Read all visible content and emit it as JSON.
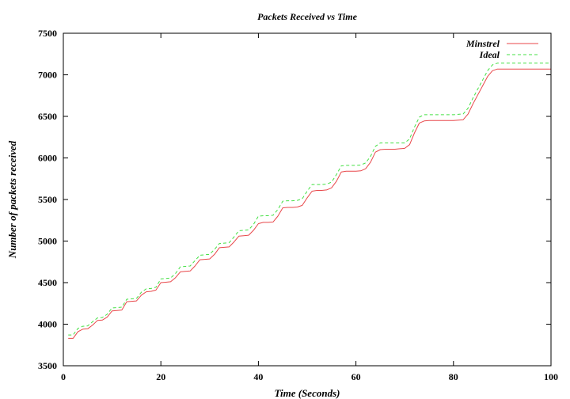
{
  "chart_data": {
    "type": "line",
    "title": "Packets Received vs Time",
    "xlabel": "Time (Seconds)",
    "ylabel": "Number of packets received",
    "xlim": [
      0,
      100
    ],
    "ylim": [
      3500,
      7500
    ],
    "xticks": [
      0,
      20,
      40,
      60,
      80,
      100
    ],
    "yticks": [
      3500,
      4000,
      4500,
      5000,
      5500,
      6000,
      6500,
      7000,
      7500
    ],
    "grid": false,
    "legend_position": "top-right",
    "series": [
      {
        "name": "Minstrel",
        "color": "#e8474a",
        "style": "solid",
        "points": [
          [
            1,
            3830
          ],
          [
            2,
            3830
          ],
          [
            3,
            3910
          ],
          [
            4,
            3940
          ],
          [
            5,
            3945
          ],
          [
            6,
            3990
          ],
          [
            7,
            4045
          ],
          [
            8,
            4050
          ],
          [
            9,
            4085
          ],
          [
            10,
            4160
          ],
          [
            11,
            4165
          ],
          [
            12,
            4170
          ],
          [
            13,
            4270
          ],
          [
            14,
            4275
          ],
          [
            15,
            4280
          ],
          [
            16,
            4350
          ],
          [
            17,
            4390
          ],
          [
            18,
            4395
          ],
          [
            19,
            4410
          ],
          [
            20,
            4500
          ],
          [
            21,
            4505
          ],
          [
            22,
            4510
          ],
          [
            23,
            4560
          ],
          [
            24,
            4630
          ],
          [
            25,
            4635
          ],
          [
            26,
            4640
          ],
          [
            27,
            4700
          ],
          [
            28,
            4775
          ],
          [
            29,
            4780
          ],
          [
            30,
            4785
          ],
          [
            31,
            4840
          ],
          [
            32,
            4920
          ],
          [
            33,
            4925
          ],
          [
            34,
            4930
          ],
          [
            35,
            4990
          ],
          [
            36,
            5060
          ],
          [
            37,
            5065
          ],
          [
            38,
            5070
          ],
          [
            39,
            5130
          ],
          [
            40,
            5210
          ],
          [
            41,
            5225
          ],
          [
            42,
            5225
          ],
          [
            43,
            5230
          ],
          [
            44,
            5300
          ],
          [
            45,
            5400
          ],
          [
            46,
            5405
          ],
          [
            47,
            5405
          ],
          [
            48,
            5410
          ],
          [
            49,
            5430
          ],
          [
            50,
            5520
          ],
          [
            51,
            5600
          ],
          [
            52,
            5610
          ],
          [
            53,
            5610
          ],
          [
            54,
            5615
          ],
          [
            55,
            5640
          ],
          [
            56,
            5720
          ],
          [
            57,
            5830
          ],
          [
            58,
            5840
          ],
          [
            59,
            5840
          ],
          [
            60,
            5840
          ],
          [
            61,
            5845
          ],
          [
            62,
            5870
          ],
          [
            63,
            5950
          ],
          [
            64,
            6070
          ],
          [
            65,
            6100
          ],
          [
            66,
            6105
          ],
          [
            67,
            6105
          ],
          [
            68,
            6105
          ],
          [
            69,
            6110
          ],
          [
            70,
            6115
          ],
          [
            71,
            6160
          ],
          [
            72,
            6300
          ],
          [
            73,
            6420
          ],
          [
            74,
            6445
          ],
          [
            75,
            6450
          ],
          [
            76,
            6450
          ],
          [
            77,
            6450
          ],
          [
            78,
            6450
          ],
          [
            79,
            6450
          ],
          [
            80,
            6450
          ],
          [
            81,
            6455
          ],
          [
            82,
            6460
          ],
          [
            83,
            6530
          ],
          [
            84,
            6650
          ],
          [
            85,
            6760
          ],
          [
            86,
            6870
          ],
          [
            87,
            6980
          ],
          [
            88,
            7050
          ],
          [
            89,
            7070
          ],
          [
            90,
            7070
          ],
          [
            91,
            7070
          ],
          [
            92,
            7070
          ],
          [
            93,
            7070
          ],
          [
            94,
            7070
          ],
          [
            95,
            7070
          ],
          [
            96,
            7070
          ],
          [
            97,
            7070
          ],
          [
            98,
            7070
          ],
          [
            99,
            7070
          ],
          [
            100,
            7070
          ]
        ]
      },
      {
        "name": "Ideal",
        "color": "#44e044",
        "style": "dashed",
        "points": [
          [
            1,
            3870
          ],
          [
            2,
            3870
          ],
          [
            3,
            3950
          ],
          [
            4,
            3975
          ],
          [
            5,
            3980
          ],
          [
            6,
            4030
          ],
          [
            7,
            4075
          ],
          [
            8,
            4080
          ],
          [
            9,
            4120
          ],
          [
            10,
            4195
          ],
          [
            11,
            4200
          ],
          [
            12,
            4205
          ],
          [
            13,
            4300
          ],
          [
            14,
            4305
          ],
          [
            15,
            4310
          ],
          [
            16,
            4385
          ],
          [
            17,
            4425
          ],
          [
            18,
            4430
          ],
          [
            19,
            4445
          ],
          [
            20,
            4545
          ],
          [
            21,
            4550
          ],
          [
            22,
            4555
          ],
          [
            23,
            4610
          ],
          [
            24,
            4690
          ],
          [
            25,
            4695
          ],
          [
            26,
            4700
          ],
          [
            27,
            4765
          ],
          [
            28,
            4830
          ],
          [
            29,
            4835
          ],
          [
            30,
            4840
          ],
          [
            31,
            4900
          ],
          [
            32,
            4970
          ],
          [
            33,
            4975
          ],
          [
            34,
            4980
          ],
          [
            35,
            5050
          ],
          [
            36,
            5125
          ],
          [
            37,
            5130
          ],
          [
            38,
            5135
          ],
          [
            39,
            5200
          ],
          [
            40,
            5300
          ],
          [
            41,
            5305
          ],
          [
            42,
            5305
          ],
          [
            43,
            5310
          ],
          [
            44,
            5380
          ],
          [
            45,
            5480
          ],
          [
            46,
            5485
          ],
          [
            47,
            5485
          ],
          [
            48,
            5490
          ],
          [
            49,
            5510
          ],
          [
            50,
            5600
          ],
          [
            51,
            5680
          ],
          [
            52,
            5680
          ],
          [
            53,
            5680
          ],
          [
            54,
            5685
          ],
          [
            55,
            5710
          ],
          [
            56,
            5800
          ],
          [
            57,
            5905
          ],
          [
            58,
            5910
          ],
          [
            59,
            5910
          ],
          [
            60,
            5910
          ],
          [
            61,
            5915
          ],
          [
            62,
            5940
          ],
          [
            63,
            6020
          ],
          [
            64,
            6140
          ],
          [
            65,
            6180
          ],
          [
            66,
            6180
          ],
          [
            67,
            6180
          ],
          [
            68,
            6180
          ],
          [
            69,
            6180
          ],
          [
            70,
            6180
          ],
          [
            71,
            6230
          ],
          [
            72,
            6370
          ],
          [
            73,
            6490
          ],
          [
            74,
            6520
          ],
          [
            75,
            6520
          ],
          [
            76,
            6520
          ],
          [
            77,
            6520
          ],
          [
            78,
            6520
          ],
          [
            79,
            6520
          ],
          [
            80,
            6520
          ],
          [
            81,
            6525
          ],
          [
            82,
            6530
          ],
          [
            83,
            6600
          ],
          [
            84,
            6720
          ],
          [
            85,
            6830
          ],
          [
            86,
            6940
          ],
          [
            87,
            7050
          ],
          [
            88,
            7120
          ],
          [
            89,
            7140
          ],
          [
            90,
            7140
          ],
          [
            91,
            7140
          ],
          [
            92,
            7140
          ],
          [
            93,
            7140
          ],
          [
            94,
            7140
          ],
          [
            95,
            7140
          ],
          [
            96,
            7140
          ],
          [
            97,
            7140
          ],
          [
            98,
            7140
          ],
          [
            99,
            7140
          ],
          [
            100,
            7140
          ]
        ]
      }
    ]
  }
}
